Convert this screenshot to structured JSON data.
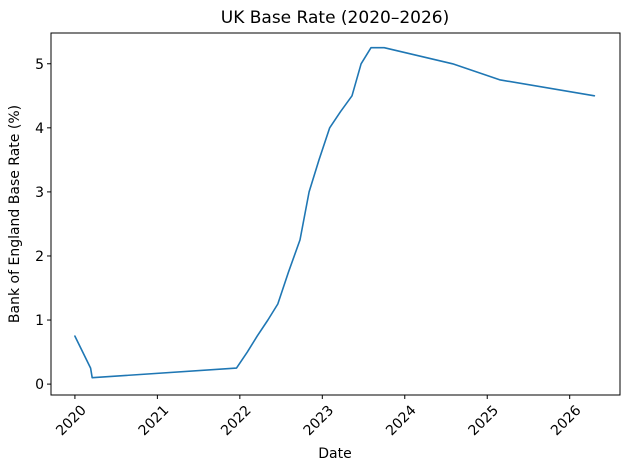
{
  "figure": {
    "background": "#ffffff",
    "axes_facecolor": "#ffffff",
    "spine_color": "#000000"
  },
  "chart_data": {
    "type": "line",
    "title": "UK Base Rate (2020–2026)",
    "xlabel": "Date",
    "ylabel": "Bank of England Base Rate (%)",
    "xlim": [
      2019.71,
      2026.61
    ],
    "ylim": [
      -0.17,
      5.48
    ],
    "x_ticks": [
      2020,
      2021,
      2022,
      2023,
      2024,
      2025,
      2026
    ],
    "y_ticks": [
      0,
      1,
      2,
      3,
      4,
      5
    ],
    "x_tick_rotation": 45,
    "grid": false,
    "legend_position": "none",
    "line_color": "#1f77b4",
    "line_width": 1.6,
    "series": [
      {
        "name": "Bank of England base rate",
        "points": [
          [
            2020.0,
            0.75
          ],
          [
            2020.19,
            0.25
          ],
          [
            2020.21,
            0.1
          ],
          [
            2021.96,
            0.25
          ],
          [
            2022.09,
            0.5
          ],
          [
            2022.21,
            0.75
          ],
          [
            2022.34,
            1.0
          ],
          [
            2022.46,
            1.25
          ],
          [
            2022.59,
            1.75
          ],
          [
            2022.73,
            2.25
          ],
          [
            2022.84,
            3.0
          ],
          [
            2022.96,
            3.5
          ],
          [
            2023.09,
            4.0
          ],
          [
            2023.22,
            4.25
          ],
          [
            2023.36,
            4.5
          ],
          [
            2023.47,
            5.0
          ],
          [
            2023.59,
            5.25
          ],
          [
            2023.75,
            5.25
          ],
          [
            2024.58,
            5.0
          ],
          [
            2025.15,
            4.75
          ],
          [
            2026.3,
            4.5
          ]
        ]
      }
    ]
  }
}
